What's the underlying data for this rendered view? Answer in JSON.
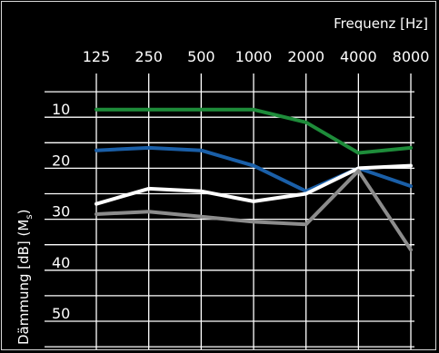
{
  "chart_data": {
    "type": "line",
    "xlabel": "Frequenz [Hz]",
    "ylabel_main": "Dämmung [dB] (M",
    "ylabel_sub": "s",
    "ylabel_close": ")",
    "categories": [
      "125",
      "250",
      "500",
      "1000",
      "2000",
      "4000",
      "8000"
    ],
    "yticks": [
      "10",
      "20",
      "30",
      "40",
      "50"
    ],
    "ylim": [
      0,
      55
    ],
    "y_inverted": true,
    "grid": true,
    "series": [
      {
        "color": "#1e8c3a",
        "values": [
          8.5,
          8.5,
          8.5,
          8.5,
          11,
          17,
          16
        ]
      },
      {
        "color": "#1a5fa8",
        "values": [
          16.5,
          16,
          16.5,
          19.5,
          24.5,
          20,
          23.5
        ]
      },
      {
        "color": "#ffffff",
        "values": [
          27,
          24,
          24.5,
          26.5,
          25,
          20,
          19.5
        ]
      },
      {
        "color": "#8c8c8c",
        "values": [
          29,
          28.5,
          29.5,
          30.5,
          31,
          20.5,
          36
        ]
      }
    ]
  }
}
